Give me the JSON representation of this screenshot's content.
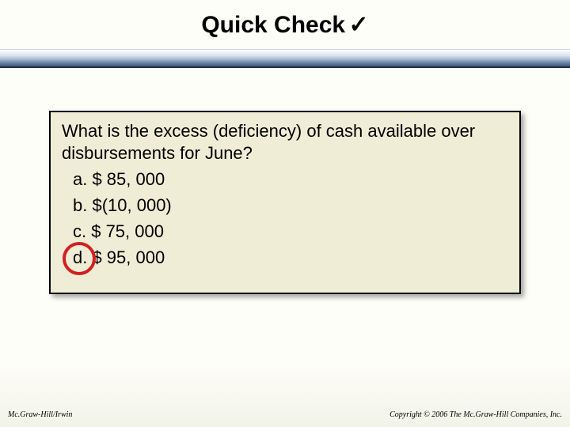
{
  "title": "Quick Check",
  "checkmark": "✓",
  "question": "What is the excess (deficiency) of cash available over disbursements for June?",
  "options": {
    "a": "a. $ 85, 000",
    "b": "b. $(10, 000)",
    "c": "c. $ 75, 000",
    "d": "d. $ 95, 000"
  },
  "correct": "d",
  "footer": {
    "left": "Mc.Graw-Hill/Irwin",
    "right": "Copyright © 2006 The Mc.Graw-Hill Companies, Inc."
  },
  "colors": {
    "box_bg": "#f0edd6",
    "circle": "#d21f1f",
    "bar_top": "#dce4ef",
    "bar_bottom": "#4a6186"
  }
}
